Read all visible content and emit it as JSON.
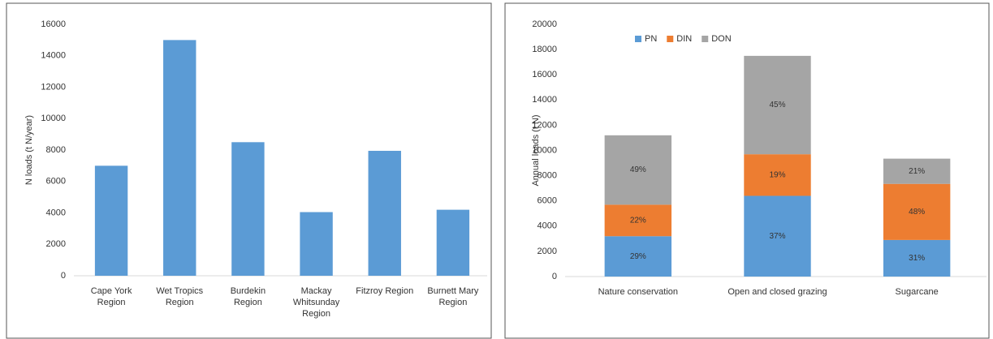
{
  "chart_data": [
    {
      "type": "bar",
      "ylabel": "N loads (t N/year)",
      "categories": [
        "Cape York Region",
        "Wet Tropics Region",
        "Burdekin Region",
        "Mackay Whitsunday Region",
        "Fitzroy Region",
        "Burnett Mary Region"
      ],
      "values": [
        7000,
        15000,
        8500,
        4050,
        7950,
        4200
      ],
      "color": "#5b9bd5",
      "ylim": [
        0,
        16000
      ],
      "yticks": [
        0,
        2000,
        4000,
        6000,
        8000,
        10000,
        12000,
        14000,
        16000
      ]
    },
    {
      "type": "stacked_bar",
      "ylabel": "Annual loads (t N)",
      "categories": [
        "Nature conservation",
        "Open and closed grazing",
        "Sugarcane"
      ],
      "series": [
        {
          "name": "PN",
          "color": "#5b9bd5",
          "values": [
            3200,
            6400,
            2900
          ],
          "share_labels": [
            "29%",
            "37%",
            "31%"
          ]
        },
        {
          "name": "DIN",
          "color": "#ed7d31",
          "values": [
            2500,
            3300,
            4450
          ],
          "share_labels": [
            "22%",
            "19%",
            "48%"
          ]
        },
        {
          "name": "DON",
          "color": "#a5a5a5",
          "values": [
            5500,
            7800,
            2000
          ],
          "share_labels": [
            "49%",
            "45%",
            "21%"
          ]
        }
      ],
      "legend": "top-left",
      "ylim": [
        0,
        20000
      ],
      "yticks": [
        0,
        2000,
        4000,
        6000,
        8000,
        10000,
        12000,
        14000,
        16000,
        18000,
        20000
      ]
    }
  ]
}
